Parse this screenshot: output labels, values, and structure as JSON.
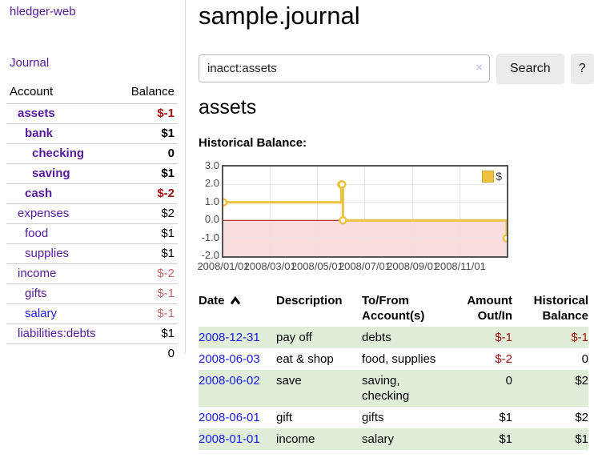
{
  "colors": {
    "purple": "#551a9b",
    "blue": "#1a1ae8",
    "negstrong": "#a31212",
    "negsoft": "#c0686c",
    "stripe": "#e0eed9",
    "gold": "#edc240",
    "goldborder": "#cfa53a",
    "chartborder": "#545454",
    "region": "#f9dcdc",
    "zeroline": "#a40000",
    "gridline": "#e4e4e4",
    "rowline": "#cccccc",
    "divider": "#d9d9d9",
    "inputborder": "#bbbbbb",
    "btnbg": "#ebebeb",
    "clearicon": "#cfc6e4",
    "ticktext": "#4a4a4a"
  },
  "sidebar": {
    "brand": "hledger-web",
    "nav_journal": "Journal",
    "header": {
      "account": "Account",
      "balance": "Balance"
    },
    "accounts": [
      {
        "name": "assets",
        "depth": 1,
        "balance": "$-1",
        "bold": true,
        "tone": "neg-strong"
      },
      {
        "name": "bank",
        "depth": 2,
        "balance": "$1",
        "bold": true,
        "tone": "normal"
      },
      {
        "name": "checking",
        "depth": 3,
        "balance": "0",
        "bold": true,
        "tone": "normal"
      },
      {
        "name": "saving",
        "depth": 3,
        "balance": "$1",
        "bold": true,
        "tone": "normal"
      },
      {
        "name": "cash",
        "depth": 2,
        "balance": "$-2",
        "bold": true,
        "tone": "neg-strong"
      },
      {
        "name": "expenses",
        "depth": 1,
        "balance": "$2",
        "bold": false,
        "tone": "normal"
      },
      {
        "name": "food",
        "depth": 2,
        "balance": "$1",
        "bold": false,
        "tone": "normal"
      },
      {
        "name": "supplies",
        "depth": 2,
        "balance": "$1",
        "bold": false,
        "tone": "normal"
      },
      {
        "name": "income",
        "depth": 1,
        "balance": "$-2",
        "bold": false,
        "tone": "neg-soft"
      },
      {
        "name": "gifts",
        "depth": 2,
        "balance": "$-1",
        "bold": false,
        "tone": "neg-soft"
      },
      {
        "name": "salary",
        "depth": 2,
        "balance": "$-1",
        "bold": false,
        "tone": "neg-soft",
        "link": "blue"
      },
      {
        "name": "liabilities:debts",
        "depth": 1,
        "balance": "$1",
        "bold": false,
        "tone": "normal"
      }
    ],
    "total": "0"
  },
  "main": {
    "title": "sample.journal",
    "search": {
      "value": "inacct:assets",
      "clear_icon": "×",
      "search_label": "Search",
      "help_label": "?"
    },
    "account_heading": "assets",
    "chart_title": "Historical Balance:"
  },
  "chart_data": {
    "type": "line",
    "step": true,
    "title": "Historical Balance",
    "series": [
      {
        "name": "$",
        "color": "#edc240",
        "points": [
          [
            "2008-01-01",
            1
          ],
          [
            "2008-06-01",
            2
          ],
          [
            "2008-06-02",
            2
          ],
          [
            "2008-06-03",
            0
          ],
          [
            "2008-12-31",
            -1
          ]
        ]
      }
    ],
    "x_range": [
      "2008-01-01",
      "2008-12-31"
    ],
    "ylim": [
      -2,
      3
    ],
    "yticks": [
      "3.0",
      "2.0",
      "1.0",
      "0.0",
      "-1.0",
      "-2.0"
    ],
    "xticks": [
      "2008/01/01",
      "2008/03/01",
      "2008/05/01",
      "2008/07/01",
      "2008/09/01",
      "2008/11/01"
    ],
    "legend": "$",
    "negative_region": true,
    "grid": true,
    "legend_position": "top-right"
  },
  "register": {
    "headers": [
      {
        "line1": "Date",
        "line2": ""
      },
      {
        "line1": "Description",
        "line2": ""
      },
      {
        "line1": "To/From",
        "line2": "Account(s)"
      },
      {
        "line1": "Amount",
        "line2": "Out/In"
      },
      {
        "line1": "Historical",
        "line2": "Balance"
      }
    ],
    "rows": [
      {
        "date": "2008-12-31",
        "description": "pay off",
        "accounts": [
          "debts"
        ],
        "amount": "$-1",
        "amount_tone": "neg",
        "balance": "$-1",
        "balance_tone": "neg"
      },
      {
        "date": "2008-06-03",
        "description": "eat & shop",
        "accounts": [
          "food",
          "supplies"
        ],
        "amount": "$-2",
        "amount_tone": "neg",
        "balance": "0",
        "balance_tone": "normal"
      },
      {
        "date": "2008-06-02",
        "description": "save",
        "accounts": [
          "saving",
          "checking"
        ],
        "amount": "0",
        "amount_tone": "normal",
        "balance": "$2",
        "balance_tone": "normal"
      },
      {
        "date": "2008-06-01",
        "description": "gift",
        "accounts": [
          "gifts"
        ],
        "amount": "$1",
        "amount_tone": "normal",
        "balance": "$2",
        "balance_tone": "normal"
      },
      {
        "date": "2008-01-01",
        "description": "income",
        "accounts": [
          "salary"
        ],
        "amount": "$1",
        "amount_tone": "normal",
        "balance": "$1",
        "balance_tone": "normal"
      }
    ]
  }
}
